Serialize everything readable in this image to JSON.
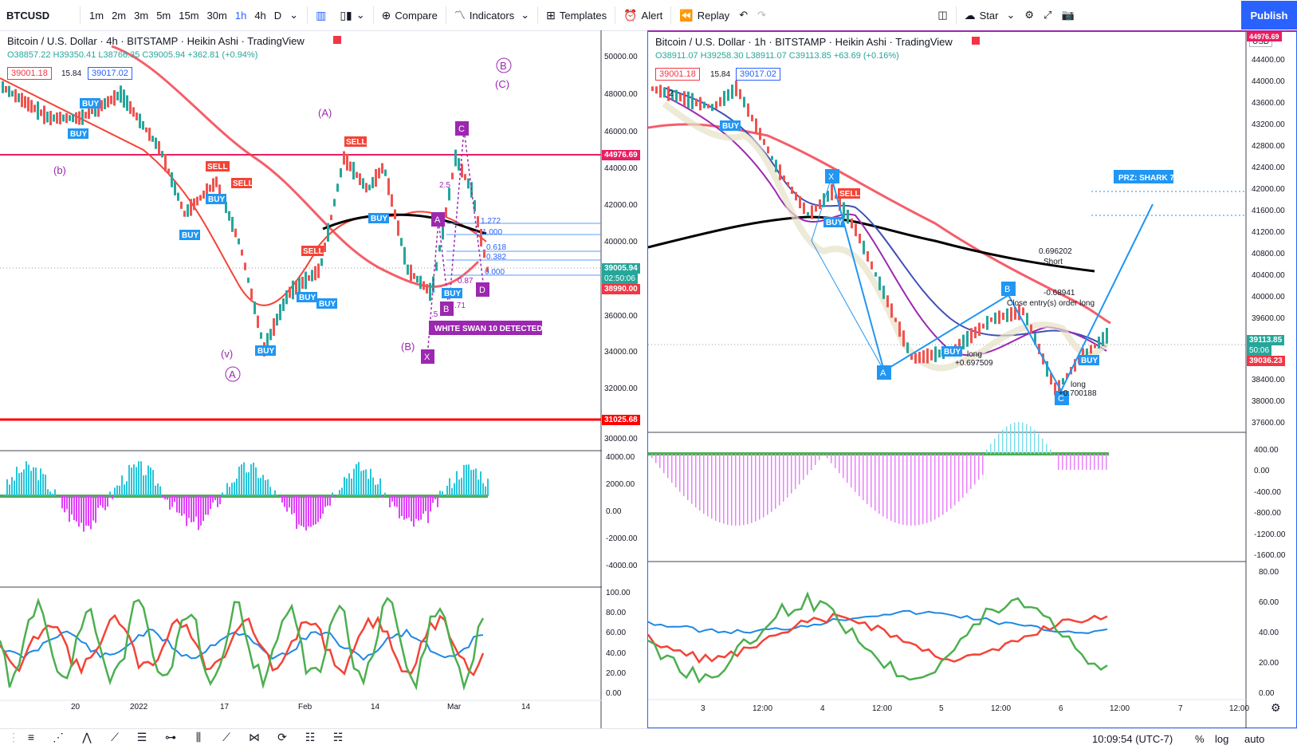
{
  "toolbar": {
    "symbol": "BTCUSD",
    "timeframes": [
      "1m",
      "2m",
      "3m",
      "5m",
      "15m",
      "30m",
      "1h",
      "4h",
      "D"
    ],
    "active_timeframe": "1h",
    "compare_label": "Compare",
    "indicators_label": "Indicators",
    "templates_label": "Templates",
    "alert_label": "Alert",
    "replay_label": "Replay",
    "star_label": "Star",
    "publish_label": "Publish",
    "colors": {
      "accent": "#2962ff"
    }
  },
  "left_chart": {
    "title": "Bitcoin / U.S. Dollar · 4h · BITSTAMP · Heikin Ashi · TradingView",
    "ohlc": "O38857.22 H39350.41 L38766.35 C39005.94 +362.81 (+0.94%)",
    "bid": "39001.18",
    "spread": "15.84",
    "ask": "39017.02",
    "price_axis": [
      "50000.00",
      "48000.00",
      "46000.00",
      "44000.00",
      "42000.00",
      "40000.00",
      "38000.00",
      "36000.00",
      "34000.00",
      "32000.00",
      "30000.00"
    ],
    "osc_axis": [
      "4000.00",
      "2000.00",
      "0.00",
      "-2000.00",
      "-4000.00"
    ],
    "rsi_axis": [
      "100.00",
      "80.00",
      "60.00",
      "40.00",
      "20.00",
      "0.00"
    ],
    "time_axis": [
      "20",
      "2022",
      "17",
      "Feb",
      "14",
      "Mar",
      "14"
    ],
    "current_price": "39005.94",
    "countdown": "02:50:06",
    "level_high": "44976.69",
    "level_low": "31025.68",
    "level_mid": "38990.00",
    "fib_levels": [
      "1.272",
      "1.000",
      "0.618",
      "0.382",
      "0.000"
    ],
    "wave_labels": [
      "(b)",
      "(A)",
      "(v)",
      "A",
      "(B)",
      "B",
      "(C)"
    ],
    "pattern_points": [
      "X",
      "A",
      "B",
      "C",
      "D"
    ],
    "pattern_ratios": [
      "2.5",
      "0.87",
      ".71",
      ".5"
    ],
    "alert_label": "WHITE SWAN 10 DETECTED",
    "signal_labels": {
      "buy": "BUY",
      "sell": "SELL"
    }
  },
  "right_chart": {
    "title": "Bitcoin / U.S. Dollar · 1h · BITSTAMP · Heikin Ashi · TradingView",
    "ohlc": "O38911.07 H39258.30 L38911.07 C39113.85 +63.69 (+0.16%)",
    "bid": "39001.18",
    "spread": "15.84",
    "ask": "39017.02",
    "currency": "USD",
    "price_axis": [
      "44400.00",
      "44000.00",
      "43600.00",
      "43200.00",
      "42800.00",
      "42400.00",
      "42000.00",
      "41600.00",
      "41200.00",
      "40800.00",
      "40400.00",
      "40000.00",
      "39600.00",
      "38400.00",
      "38000.00",
      "37600.00"
    ],
    "osc_axis": [
      "400.00",
      "0.00",
      "-400.00",
      "-800.00",
      "-1200.00",
      "-1600.00"
    ],
    "rsi_axis": [
      "80.00",
      "60.00",
      "40.00",
      "20.00",
      "0.00"
    ],
    "time_axis": [
      "3",
      "12:00",
      "4",
      "12:00",
      "5",
      "12:00",
      "6",
      "12:00",
      "7",
      "12:00"
    ],
    "current_price": "39113.85",
    "countdown": "50:06",
    "level_low": "39036.23",
    "level_top": "44976.69",
    "prz_label": "PRZ: SHARK 7",
    "pattern_points": [
      "X",
      "A",
      "B",
      "C"
    ],
    "trade_notes": [
      "0.696202",
      "Short",
      "-0.68941",
      "Close entry(s) order long",
      "long",
      "+0.697509",
      "long",
      "+0.700188"
    ],
    "signal_labels": {
      "buy": "BUY",
      "sell": "SELL"
    },
    "pane_marker": "2"
  },
  "bottom": {
    "clock": "10:09:54 (UTC-7)",
    "percent": "%",
    "log": "log",
    "auto": "auto"
  }
}
